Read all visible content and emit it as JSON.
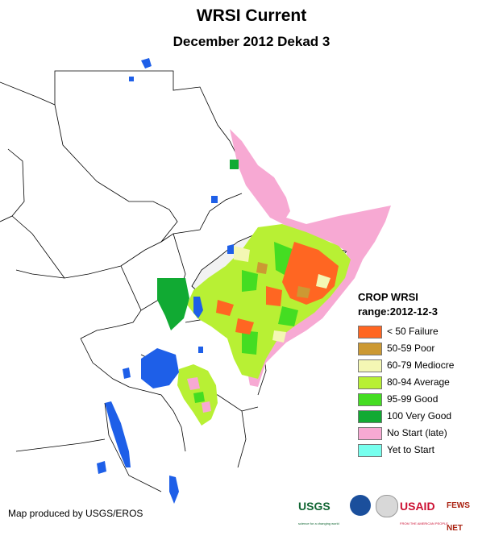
{
  "title": "WRSI Current",
  "subtitle": "December 2012 Dekad 3",
  "legend": {
    "title": "CROP WRSI",
    "range": "range:2012-12-3",
    "items": [
      {
        "label": "< 50  Failure",
        "color": "#ff6622"
      },
      {
        "label": "50-59 Poor",
        "color": "#cc9933"
      },
      {
        "label": "60-79 Mediocre",
        "color": "#f4f7b4"
      },
      {
        "label": "80-94 Average",
        "color": "#b8f034"
      },
      {
        "label": "95-99 Good",
        "color": "#44dd22"
      },
      {
        "label": "100 Very Good",
        "color": "#11aa33"
      },
      {
        "label": "No Start (late)",
        "color": "#f7a9d3"
      },
      {
        "label": "Yet to Start",
        "color": "#77ffee"
      }
    ]
  },
  "credit": "Map produced by USGS/EROS",
  "logos": {
    "usgs": "USGS",
    "usgs_tagline": "science for a changing world",
    "usaid": "USAID",
    "usaid_tagline": "FROM THE AMERICAN PEOPLE",
    "fews": "FEWS NET"
  },
  "colors": {
    "water": "#1e5fe8",
    "border": "#000000"
  }
}
